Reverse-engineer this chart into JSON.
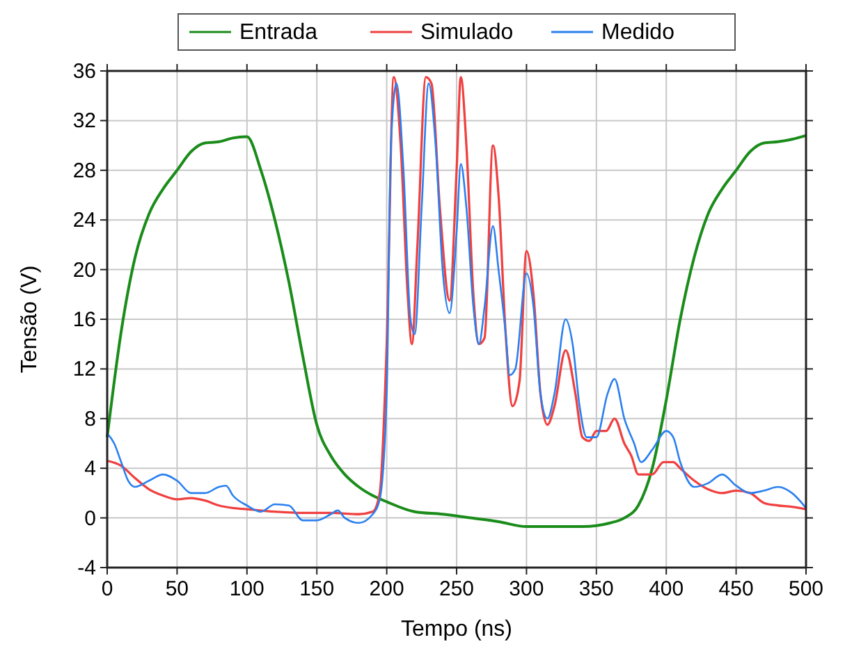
{
  "chart_data": {
    "type": "line",
    "xlabel": "Tempo (ns)",
    "ylabel": "Tensão (V)",
    "xlim": [
      0,
      500
    ],
    "ylim": [
      -4,
      36
    ],
    "xticks": [
      0,
      50,
      100,
      150,
      200,
      250,
      300,
      350,
      400,
      450,
      500
    ],
    "yticks": [
      -4,
      0,
      4,
      8,
      12,
      16,
      20,
      24,
      28,
      32,
      36
    ],
    "grid": true,
    "legend": "top",
    "line_style": "solid",
    "series": [
      {
        "name": "Entrada",
        "color": "#1a8c1a",
        "x": [
          0,
          10,
          20,
          30,
          40,
          50,
          60,
          70,
          80,
          90,
          100,
          110,
          120,
          130,
          140,
          150,
          160,
          170,
          180,
          190,
          200,
          220,
          240,
          260,
          280,
          300,
          320,
          340,
          360,
          370,
          380,
          390,
          400,
          410,
          420,
          430,
          440,
          450,
          460,
          470,
          480,
          490,
          500
        ],
        "values": [
          6.5,
          15,
          21,
          24.5,
          26.5,
          28,
          29.5,
          30.2,
          30.3,
          30.6,
          30.7,
          28,
          24,
          19,
          13,
          7.5,
          5,
          3.5,
          2.5,
          1.8,
          1.3,
          0.5,
          0.3,
          0,
          -0.3,
          -0.7,
          -0.7,
          -0.7,
          -0.4,
          0,
          1,
          4,
          9.5,
          16,
          21,
          24.5,
          26.5,
          28,
          29.5,
          30.2,
          30.3,
          30.5,
          30.8
        ]
      },
      {
        "name": "Simulado",
        "color": "#f04040",
        "x": [
          0,
          10,
          20,
          30,
          40,
          50,
          60,
          70,
          80,
          90,
          100,
          120,
          140,
          160,
          180,
          190,
          195,
          200,
          205,
          210,
          215,
          218,
          222,
          228,
          232,
          238,
          245,
          250,
          253,
          257,
          262,
          266,
          270,
          276,
          280,
          285,
          290,
          295,
          300,
          305,
          310,
          315,
          320,
          328,
          335,
          340,
          345,
          350,
          357,
          363,
          370,
          375,
          380,
          390,
          398,
          405,
          410,
          420,
          430,
          440,
          450,
          460,
          470,
          480,
          490,
          500
        ],
        "values": [
          4.6,
          4.2,
          3.2,
          2.3,
          1.8,
          1.5,
          1.6,
          1.4,
          1,
          0.8,
          0.7,
          0.5,
          0.4,
          0.4,
          0.3,
          0.5,
          2,
          14,
          35.5,
          30,
          18,
          14,
          22,
          35.5,
          35,
          25,
          17.5,
          28,
          35.5,
          30,
          18,
          14,
          14.5,
          30,
          26,
          15,
          9,
          11,
          21.5,
          18,
          10,
          7.5,
          9,
          13.5,
          10,
          6.5,
          6.2,
          7,
          7,
          8,
          6,
          5,
          3.5,
          3.5,
          4.5,
          4.5,
          4,
          3,
          2.3,
          2,
          2.2,
          2,
          1.2,
          1,
          0.9,
          0.7
        ]
      },
      {
        "name": "Medido",
        "color": "#2a7ff0",
        "x": [
          0,
          5,
          10,
          15,
          20,
          30,
          40,
          50,
          60,
          70,
          80,
          85,
          90,
          100,
          110,
          120,
          130,
          140,
          150,
          160,
          165,
          170,
          180,
          190,
          195,
          200,
          203,
          207,
          212,
          217,
          220,
          225,
          230,
          235,
          240,
          245,
          250,
          253,
          257,
          262,
          266,
          270,
          276,
          280,
          285,
          288,
          292,
          300,
          305,
          310,
          315,
          320,
          328,
          333,
          338,
          343,
          350,
          358,
          363,
          370,
          377,
          382,
          390,
          400,
          405,
          410,
          420,
          430,
          440,
          450,
          460,
          470,
          480,
          490,
          500
        ],
        "values": [
          6.8,
          6,
          4.5,
          3,
          2.5,
          3,
          3.5,
          3,
          2,
          2,
          2.5,
          2.6,
          1.8,
          1,
          0.5,
          1.1,
          1,
          -0.2,
          -0.2,
          0.3,
          0.6,
          0,
          -0.4,
          0.3,
          1.5,
          10,
          30,
          35,
          28,
          16,
          14.8,
          25,
          35,
          30,
          20,
          16.5,
          23,
          28.5,
          25,
          17,
          14,
          17,
          23.5,
          20,
          15,
          11.5,
          12,
          19.7,
          17,
          10,
          8,
          10,
          16,
          14,
          9,
          6.5,
          6.5,
          10,
          11.2,
          8,
          6,
          4.5,
          5.5,
          7,
          6.5,
          4.5,
          2.5,
          2.8,
          3.5,
          2.6,
          2,
          2.2,
          2.5,
          2,
          0.8
        ]
      }
    ]
  }
}
